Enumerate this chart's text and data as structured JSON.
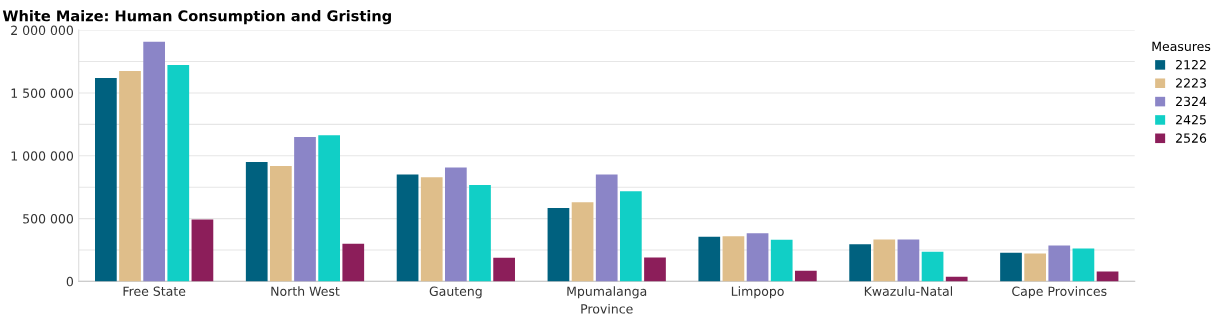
{
  "chart_data": {
    "type": "bar",
    "title": "White Maize: Human Consumption and Gristing",
    "xlabel": "Province",
    "legend_title": "Measures",
    "categories": [
      "Free State",
      "North West",
      "Gauteng",
      "Mpumalanga",
      "Limpopo",
      "Kwazulu-Natal",
      "Cape Provinces"
    ],
    "series": [
      {
        "name": "2122",
        "color": "#00617f",
        "values": [
          1620000,
          950000,
          850000,
          585000,
          355000,
          295000,
          228000
        ]
      },
      {
        "name": "2223",
        "color": "#dfbe8a",
        "values": [
          1675000,
          918000,
          830000,
          630000,
          360000,
          333000,
          222000
        ]
      },
      {
        "name": "2324",
        "color": "#8b85c7",
        "values": [
          1907000,
          1150000,
          907000,
          850000,
          384000,
          333000,
          286000
        ]
      },
      {
        "name": "2425",
        "color": "#11cfc6",
        "values": [
          1722000,
          1164000,
          767000,
          717000,
          331000,
          236000,
          262000
        ]
      },
      {
        "name": "2526",
        "color": "#8c1e5a",
        "values": [
          492000,
          299000,
          188000,
          190000,
          85000,
          37000,
          79000
        ]
      }
    ],
    "ylim": [
      0,
      2000000
    ],
    "yticks": [
      {
        "value": 0,
        "label": "0"
      },
      {
        "value": 250000,
        "label": null
      },
      {
        "value": 500000,
        "label": "500 000"
      },
      {
        "value": 750000,
        "label": null
      },
      {
        "value": 1000000,
        "label": "1 000 000"
      },
      {
        "value": 1250000,
        "label": null
      },
      {
        "value": 1500000,
        "label": "1 500 000"
      },
      {
        "value": 1750000,
        "label": null
      },
      {
        "value": 2000000,
        "label": "2 000 000"
      }
    ],
    "grid": "y",
    "legend": "right"
  }
}
